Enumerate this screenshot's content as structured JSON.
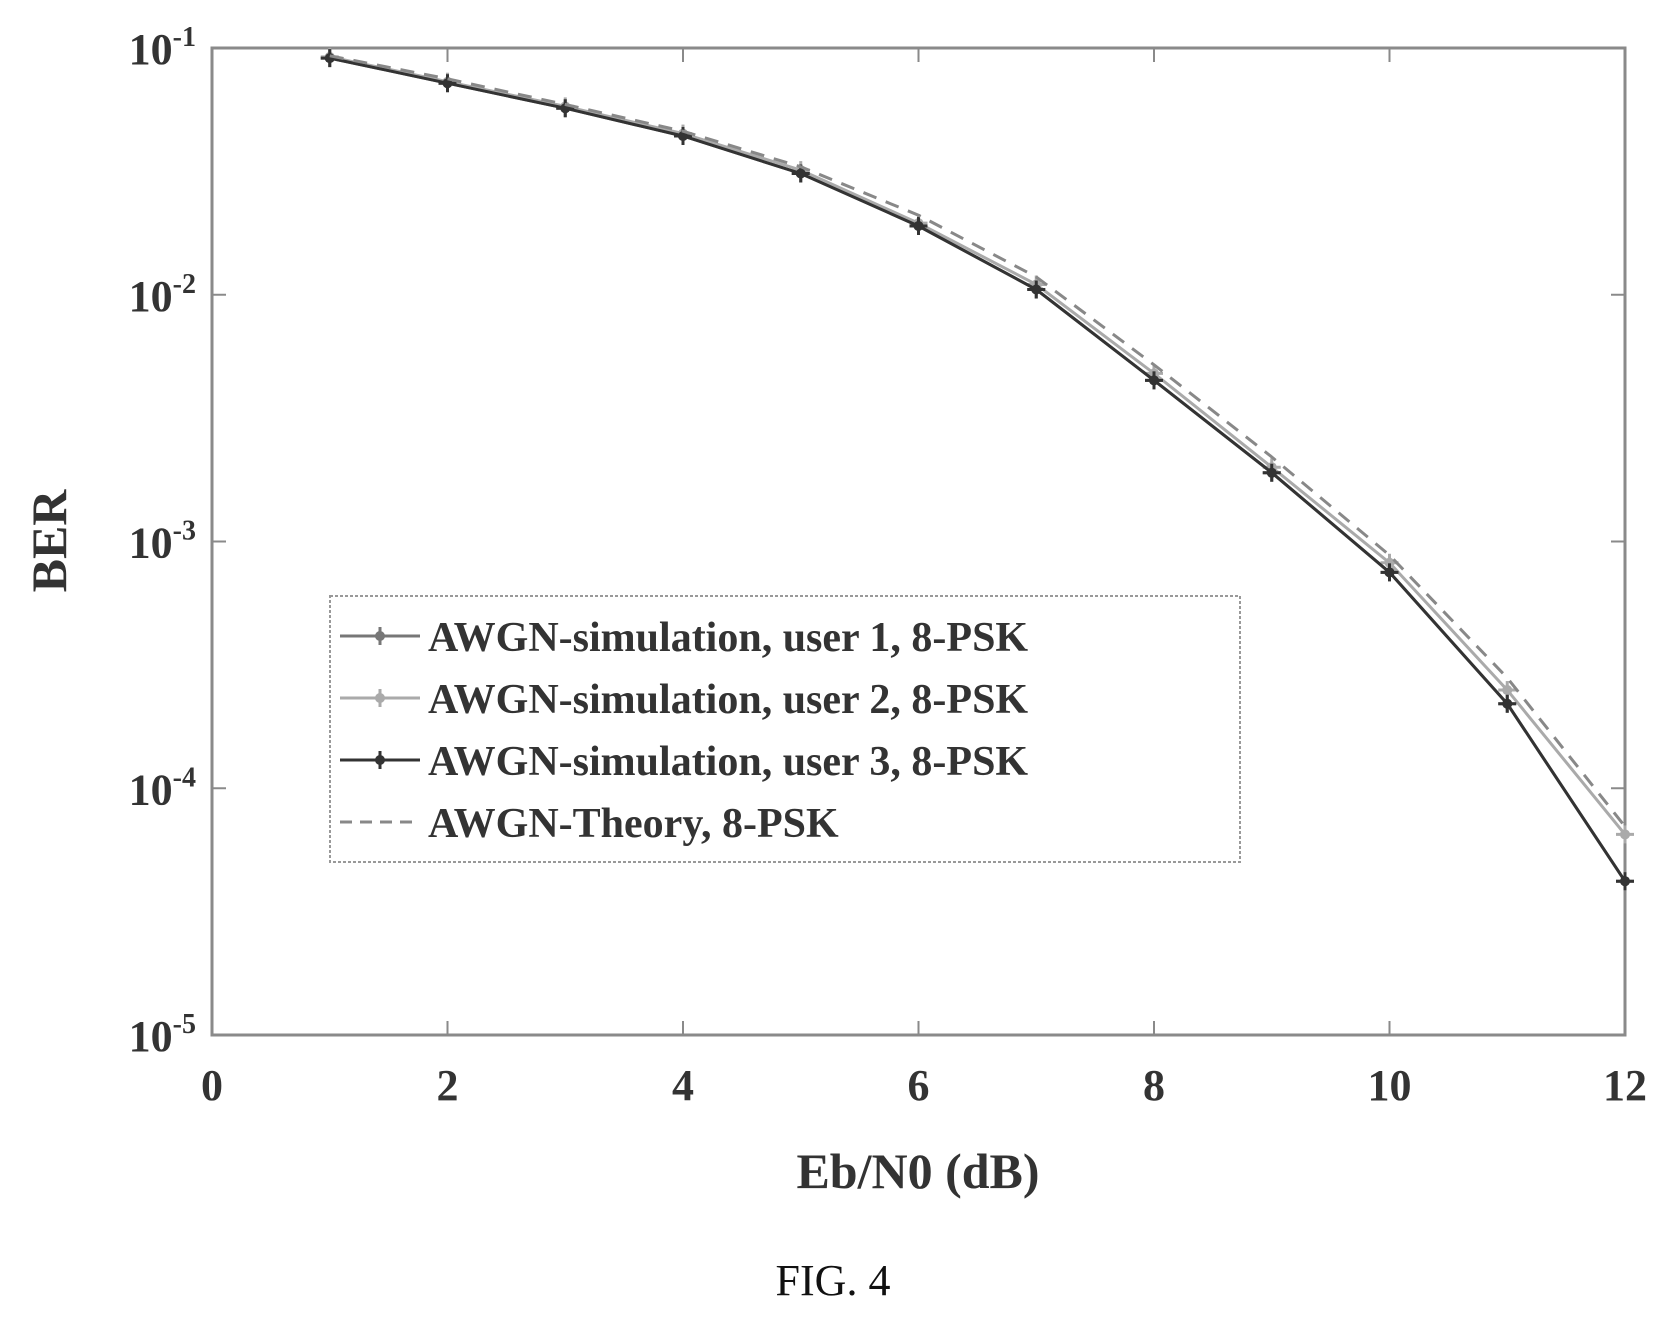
{
  "caption": "FIG. 4",
  "chart_data": {
    "type": "line",
    "xlabel": "Eb/N0 (dB)",
    "ylabel": "BER",
    "xlim": [
      0,
      12
    ],
    "ylim": [
      1e-05,
      0.1
    ],
    "yscale": "log",
    "xticks": [
      0,
      2,
      4,
      6,
      8,
      10,
      12
    ],
    "yticks": [
      {
        "value": 0.1,
        "base": "10",
        "exp": "-1"
      },
      {
        "value": 0.01,
        "base": "10",
        "exp": "-2"
      },
      {
        "value": 0.001,
        "base": "10",
        "exp": "-3"
      },
      {
        "value": 0.0001,
        "base": "10",
        "exp": "-4"
      },
      {
        "value": 1e-05,
        "base": "10",
        "exp": "-5"
      }
    ],
    "grid": false,
    "legend_position": "center-left",
    "x": [
      1,
      2,
      3,
      4,
      5,
      6,
      7,
      8,
      9,
      10,
      11,
      12
    ],
    "series": [
      {
        "name": "AWGN-simulation, user 1, 8-PSK",
        "color": "#777777",
        "dash": "solid",
        "marker": "+",
        "values": [
          0.091,
          0.072,
          0.057,
          0.044,
          0.031,
          0.019,
          0.0105,
          0.0045,
          0.0019,
          0.00075,
          0.00022,
          4.2e-05
        ]
      },
      {
        "name": "AWGN-simulation, user 2, 8-PSK",
        "color": "#aaaaaa",
        "dash": "solid",
        "marker": "+",
        "values": [
          0.092,
          0.073,
          0.058,
          0.045,
          0.032,
          0.0195,
          0.011,
          0.0048,
          0.002,
          0.00082,
          0.00025,
          6.5e-05
        ]
      },
      {
        "name": "AWGN-simulation, user 3, 8-PSK",
        "color": "#333333",
        "dash": "solid",
        "marker": "+",
        "values": [
          0.091,
          0.072,
          0.057,
          0.044,
          0.031,
          0.019,
          0.0105,
          0.0045,
          0.0019,
          0.00075,
          0.00022,
          4.2e-05
        ]
      },
      {
        "name": "AWGN-Theory, 8-PSK",
        "color": "#888888",
        "dash": "dashed",
        "marker": "none",
        "values": [
          0.093,
          0.075,
          0.059,
          0.046,
          0.033,
          0.021,
          0.0118,
          0.0052,
          0.0022,
          0.00088,
          0.00028,
          7e-05
        ]
      }
    ]
  }
}
